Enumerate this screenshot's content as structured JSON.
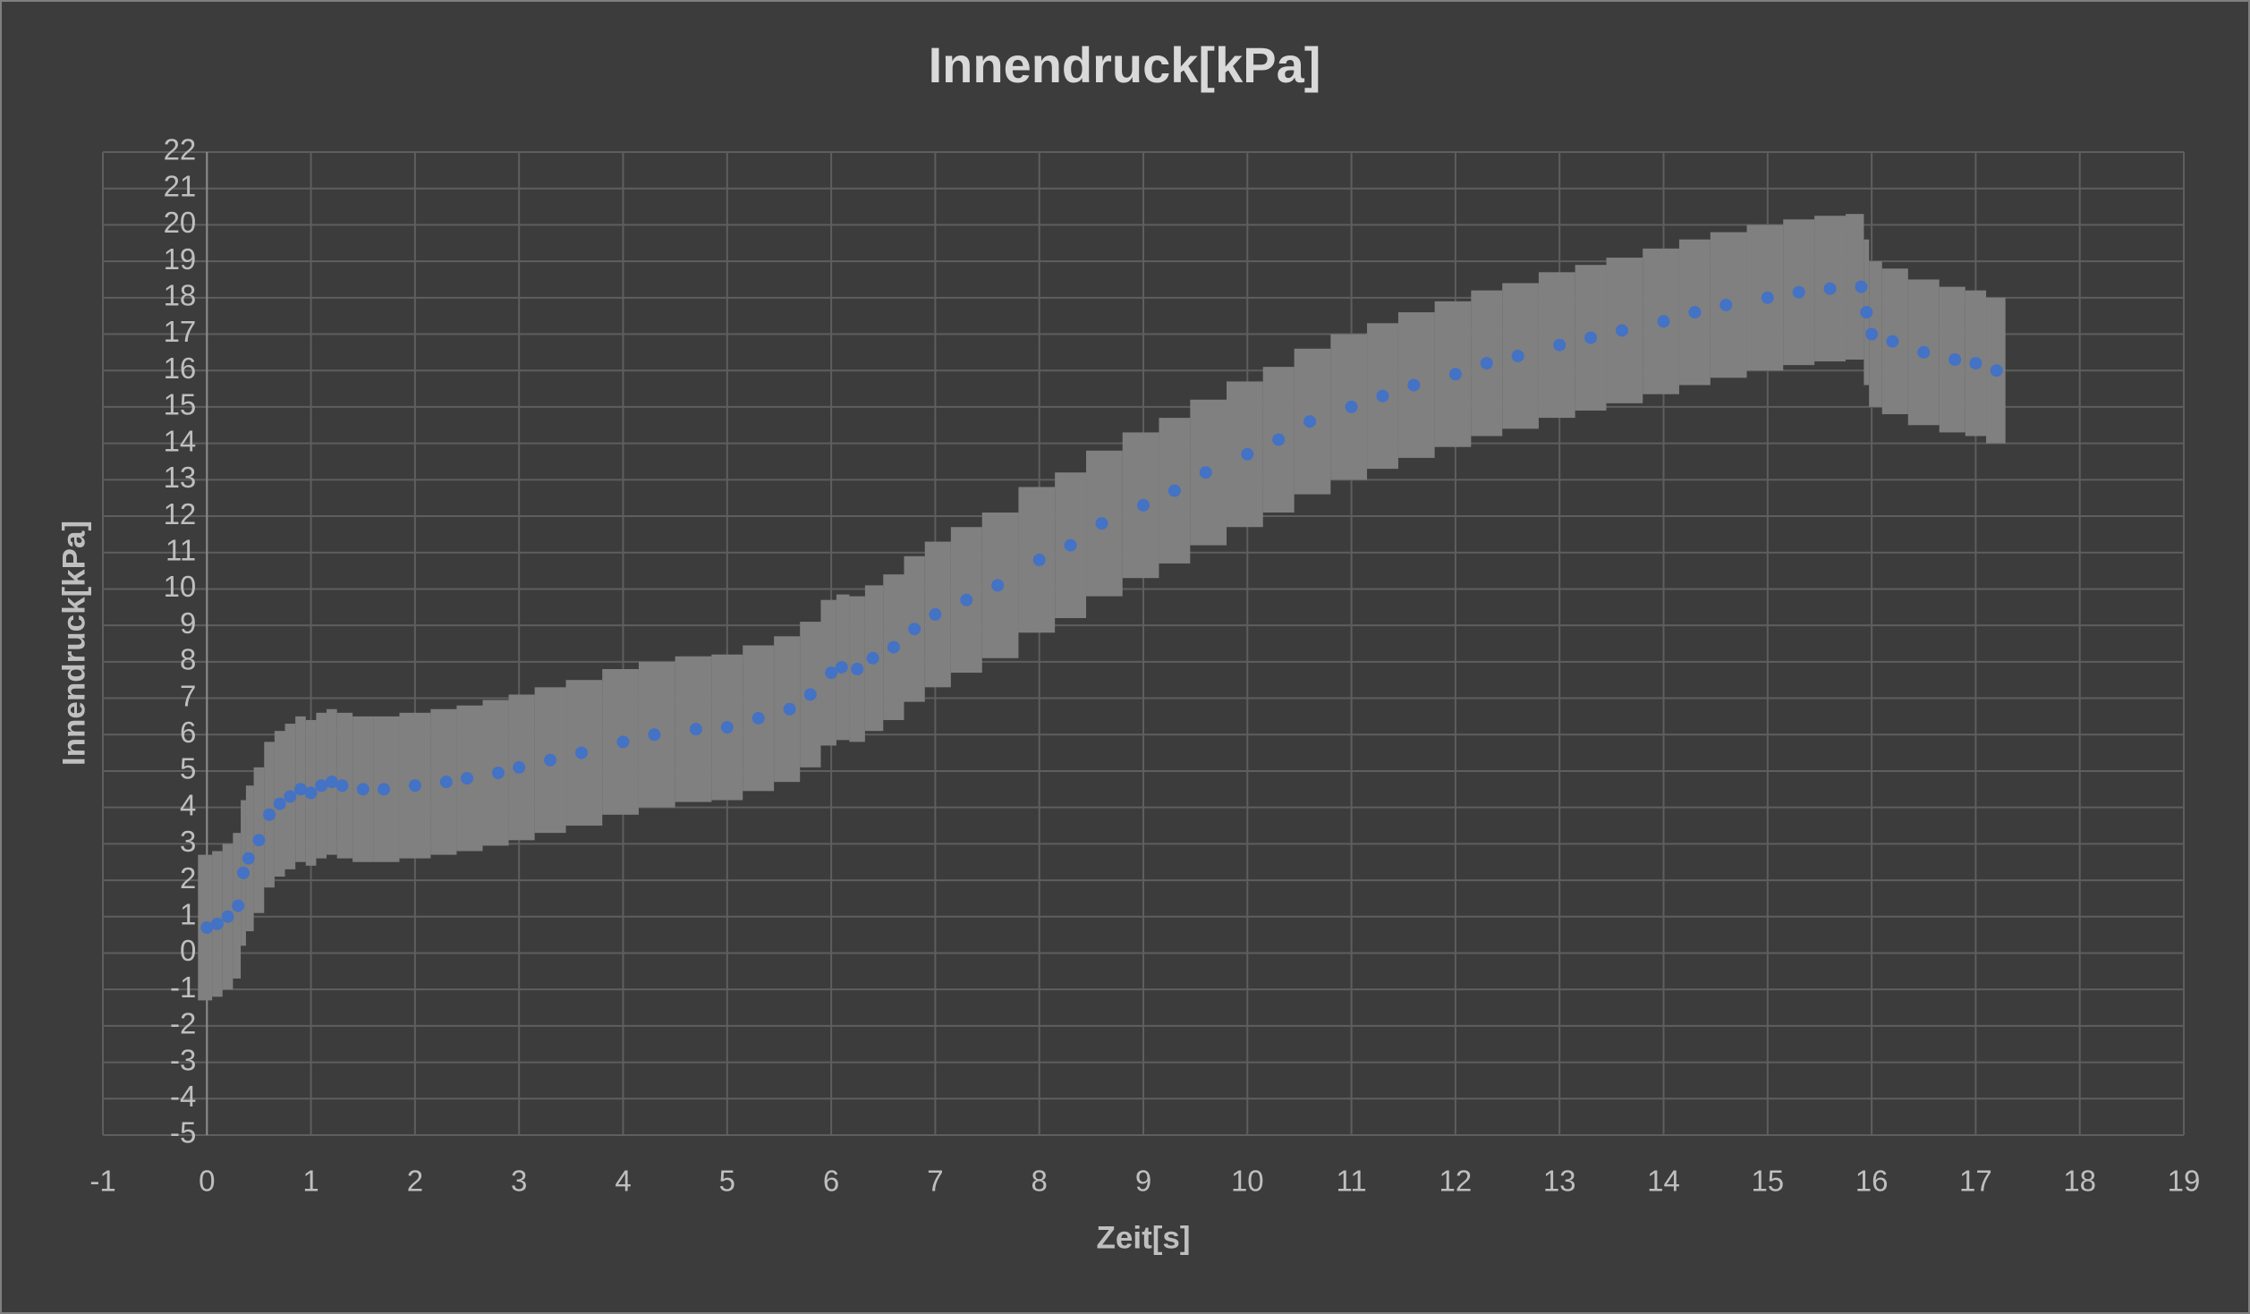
{
  "chart_data": {
    "type": "scatter",
    "title": "Innendruck[kPa]",
    "x_label": "Zeit[s]",
    "y_label": "Innendruck[kPa]",
    "xlim": [
      -1,
      19
    ],
    "ylim": [
      -5,
      22
    ],
    "xticks": [
      -1,
      0,
      1,
      2,
      3,
      4,
      5,
      6,
      7,
      8,
      9,
      10,
      11,
      12,
      13,
      14,
      15,
      16,
      17,
      18,
      19
    ],
    "yticks": [
      -5,
      -4,
      -3,
      -2,
      -1,
      0,
      1,
      2,
      3,
      4,
      5,
      6,
      7,
      8,
      9,
      10,
      11,
      12,
      13,
      14,
      15,
      16,
      17,
      18,
      19,
      20,
      21,
      22
    ],
    "grid": true,
    "series": [
      {
        "name": "Innendruck[kPa]",
        "color": "#4472c4",
        "error_color": "#808080",
        "x": [
          0,
          0.1,
          0.2,
          0.3,
          0.35,
          0.4,
          0.5,
          0.6,
          0.7,
          0.8,
          0.9,
          1.0,
          1.1,
          1.2,
          1.3,
          1.5,
          1.7,
          2.0,
          2.3,
          2.5,
          2.8,
          3.0,
          3.3,
          3.6,
          4.0,
          4.3,
          4.7,
          5.0,
          5.3,
          5.6,
          5.8,
          6.0,
          6.1,
          6.25,
          6.4,
          6.6,
          6.8,
          7.0,
          7.3,
          7.6,
          8.0,
          8.3,
          8.6,
          9.0,
          9.3,
          9.6,
          10.0,
          10.3,
          10.6,
          11.0,
          11.3,
          11.6,
          12.0,
          12.3,
          12.6,
          13.0,
          13.3,
          13.6,
          14.0,
          14.3,
          14.6,
          15.0,
          15.3,
          15.6,
          15.9,
          15.95,
          16.0,
          16.2,
          16.5,
          16.8,
          17.0,
          17.2
        ],
        "values": [
          0.7,
          0.8,
          1.0,
          1.3,
          2.2,
          2.6,
          3.1,
          3.8,
          4.1,
          4.3,
          4.5,
          4.4,
          4.6,
          4.7,
          4.6,
          4.5,
          4.5,
          4.6,
          4.7,
          4.8,
          4.95,
          5.1,
          5.3,
          5.5,
          5.8,
          6.0,
          6.15,
          6.2,
          6.45,
          6.7,
          7.1,
          7.7,
          7.85,
          7.8,
          8.1,
          8.4,
          8.9,
          9.3,
          9.7,
          10.1,
          10.8,
          11.2,
          11.8,
          12.3,
          12.7,
          13.2,
          13.7,
          14.1,
          14.6,
          15.0,
          15.3,
          15.6,
          15.9,
          16.2,
          16.4,
          16.7,
          16.9,
          17.1,
          17.35,
          17.6,
          17.8,
          18.0,
          18.15,
          18.25,
          18.3,
          17.6,
          17.0,
          16.8,
          16.5,
          16.3,
          16.2,
          16.0
        ],
        "errors": [
          2,
          2,
          2,
          2,
          2,
          2,
          2,
          2,
          2,
          2,
          2,
          2,
          2,
          2,
          2,
          2,
          2,
          2,
          2,
          2,
          2,
          2,
          2,
          2,
          2,
          2,
          2,
          2,
          2,
          2,
          2,
          2,
          2,
          2,
          2,
          2,
          2,
          2,
          2,
          2,
          2,
          2,
          2,
          2,
          2,
          2,
          2,
          2,
          2,
          2,
          2,
          2,
          2,
          2,
          2,
          2,
          2,
          2,
          2,
          2,
          2,
          2,
          2,
          2,
          2,
          2,
          2,
          2,
          2,
          2,
          2,
          2
        ]
      }
    ]
  }
}
